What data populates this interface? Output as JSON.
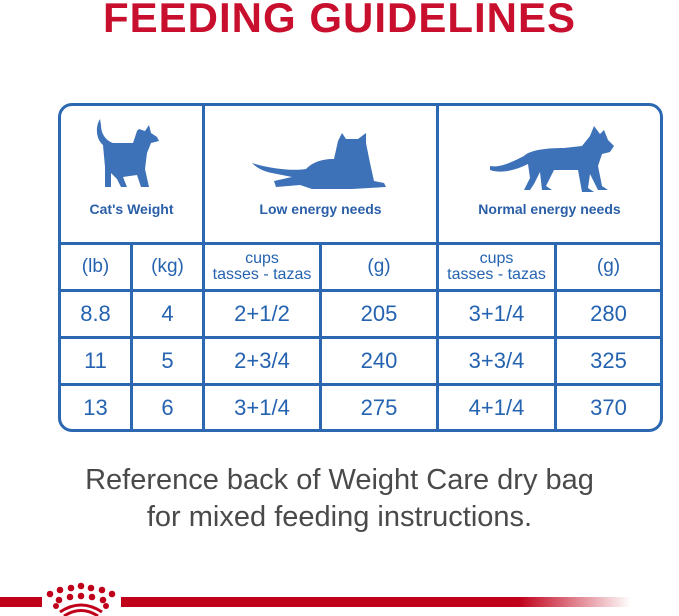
{
  "title": "FEEDING GUIDELINES",
  "headers": {
    "weight": "Cat's Weight",
    "low": "Low energy needs",
    "normal": "Normal energy needs"
  },
  "units": {
    "lb": "(lb)",
    "kg": "(kg)",
    "cups_line1": "cups",
    "cups_line2": "tasses - tazas",
    "g": "(g)"
  },
  "rows": [
    {
      "lb": "8.8",
      "kg": "4",
      "low_cups": "2+1/2",
      "low_g": "205",
      "normal_cups": "3+1/4",
      "normal_g": "280"
    },
    {
      "lb": "11",
      "kg": "5",
      "low_cups": "2+3/4",
      "low_g": "240",
      "normal_cups": "3+3/4",
      "normal_g": "325"
    },
    {
      "lb": "13",
      "kg": "6",
      "low_cups": "3+1/4",
      "low_g": "275",
      "normal_cups": "4+1/4",
      "normal_g": "370"
    }
  ],
  "note": {
    "line1": "Reference back of Weight Care dry bag",
    "line2": "for mixed feeding instructions."
  },
  "colors": {
    "title": "#c8102e",
    "table": "#2c68b2",
    "note": "#4a4a4a",
    "brand_bar": "#c0001a"
  },
  "icons": [
    "cat-standing-icon",
    "cat-lying-icon",
    "cat-walking-icon",
    "royal-canin-crown-logo"
  ]
}
